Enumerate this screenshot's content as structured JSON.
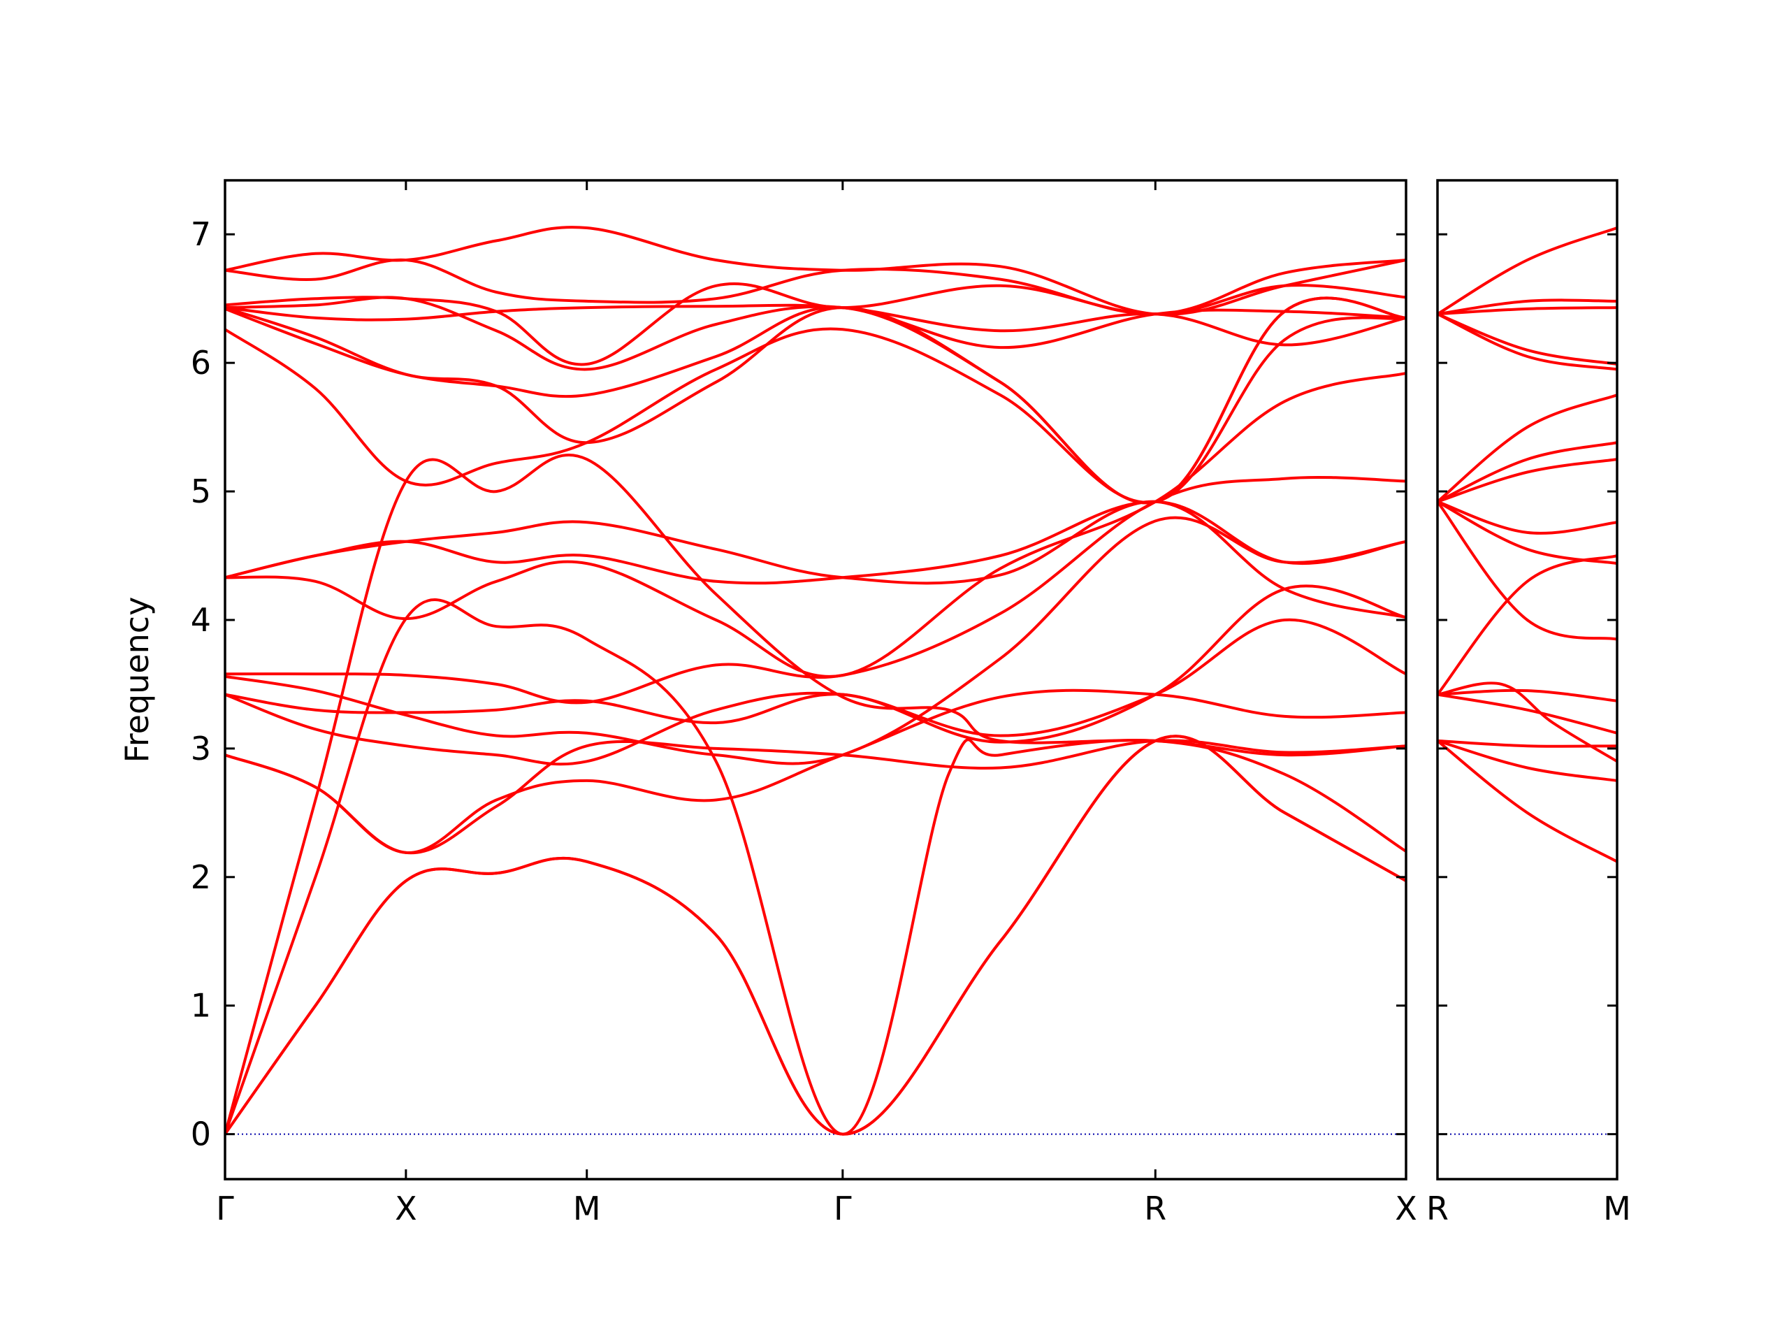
{
  "chart_data": {
    "type": "line",
    "title": "",
    "ylabel": "Frequency",
    "ylim": [
      -0.35,
      7.42
    ],
    "yticks": [
      0,
      1,
      2,
      3,
      4,
      5,
      6,
      7
    ],
    "grid": false,
    "legend": "none",
    "colors": {
      "bands": "#ff0000",
      "zero_line": "#0000aa",
      "axes": "#000000"
    },
    "panels": [
      {
        "path_labels": [
          "Γ",
          "X",
          "M",
          "Γ",
          "R",
          "X"
        ],
        "x_range": [
          0,
          4.57
        ],
        "label_positions": [
          0,
          0.7,
          1.4,
          2.39,
          3.6,
          4.57
        ],
        "series": [
          {
            "x": [
              0,
              0.35,
              0.7,
              1.05,
              1.4,
              1.9,
              2.39,
              3.0,
              3.6,
              4.1,
              4.57
            ],
            "values": [
              0,
              1.0,
              1.97,
              2.03,
              2.12,
              1.55,
              0,
              1.5,
              3.06,
              2.5,
              1.97
            ]
          },
          {
            "x": [
              0,
              0.35,
              0.7,
              1.05,
              1.4,
              1.9,
              2.39,
              3.0,
              3.6,
              4.1,
              4.57
            ],
            "values": [
              0,
              1.0,
              1.97,
              2.03,
              2.12,
              1.55,
              0,
              1.5,
              3.06,
              2.5,
              1.97
            ]
          },
          {
            "x": [
              0,
              0.35,
              0.7,
              1.05,
              1.4,
              1.9,
              2.39,
              2.8,
              3.0,
              3.6,
              4.1,
              4.57
            ],
            "values": [
              0,
              2.0,
              4.01,
              3.95,
              3.85,
              2.9,
              0,
              2.8,
              2.95,
              3.06,
              2.8,
              2.2
            ]
          },
          {
            "x": [
              0,
              0.35,
              0.7,
              1.05,
              1.4,
              1.9,
              2.39,
              2.8,
              3.0,
              3.6,
              4.1,
              4.57
            ],
            "values": [
              0,
              2.6,
              5.08,
              5.0,
              5.25,
              4.2,
              3.4,
              3.3,
              3.06,
              3.06,
              2.95,
              3.02
            ]
          },
          {
            "x": [
              0,
              0.35,
              0.7,
              1.05,
              1.4,
              1.9,
              2.39,
              3.0,
              3.6,
              4.1,
              4.57
            ],
            "values": [
              2.95,
              2.7,
              2.19,
              2.55,
              3.02,
              3.0,
              2.95,
              2.85,
              3.06,
              2.97,
              3.02
            ]
          },
          {
            "x": [
              0,
              0.35,
              0.7,
              1.05,
              1.4,
              1.9,
              2.39,
              3.0,
              3.6,
              4.1,
              4.57
            ],
            "values": [
              2.95,
              2.7,
              2.19,
              2.6,
              2.75,
              2.6,
              2.95,
              3.4,
              3.42,
              3.25,
              3.28
            ]
          },
          {
            "x": [
              0,
              0.35,
              0.7,
              1.05,
              1.4,
              1.9,
              2.39,
              3.0,
              3.6,
              4.1,
              4.57
            ],
            "values": [
              3.42,
              3.15,
              3.02,
              2.95,
              2.9,
              3.3,
              3.42,
              3.1,
              3.42,
              4.0,
              3.58
            ]
          },
          {
            "x": [
              0,
              0.35,
              0.7,
              1.05,
              1.4,
              1.9,
              2.39,
              3.0,
              3.6,
              4.1,
              4.57
            ],
            "values": [
              3.42,
              3.3,
              3.28,
              3.3,
              3.37,
              3.2,
              3.42,
              3.05,
              3.42,
              4.24,
              4.02
            ]
          },
          {
            "x": [
              0,
              0.35,
              0.7,
              1.05,
              1.4,
              1.9,
              2.39,
              3.0,
              3.6,
              4.1,
              4.57
            ],
            "values": [
              3.56,
              3.45,
              3.26,
              3.1,
              3.12,
              2.95,
              2.95,
              3.7,
              4.77,
              4.45,
              4.61
            ]
          },
          {
            "x": [
              0,
              0.35,
              0.7,
              1.05,
              1.4,
              1.9,
              2.39,
              3.0,
              3.6,
              4.1,
              4.57
            ],
            "values": [
              3.58,
              3.58,
              3.57,
              3.5,
              3.36,
              3.65,
              3.57,
              4.05,
              4.92,
              5.1,
              5.08
            ]
          },
          {
            "x": [
              0,
              0.35,
              0.7,
              1.05,
              1.4,
              1.9,
              2.39,
              3.0,
              3.6,
              4.1,
              4.57
            ],
            "values": [
              4.33,
              4.3,
              4.01,
              4.3,
              4.44,
              4.0,
              3.57,
              4.4,
              4.92,
              5.7,
              5.92
            ]
          },
          {
            "x": [
              0,
              0.35,
              0.7,
              1.05,
              1.4,
              1.9,
              2.39,
              3.0,
              3.6,
              4.1,
              4.57
            ],
            "values": [
              4.33,
              4.5,
              4.61,
              4.45,
              4.5,
              4.3,
              4.33,
              4.5,
              4.92,
              4.45,
              4.61
            ]
          },
          {
            "x": [
              0,
              0.35,
              0.7,
              1.05,
              1.4,
              1.9,
              2.39,
              3.0,
              3.6,
              4.1,
              4.57
            ],
            "values": [
              4.33,
              4.5,
              4.61,
              4.68,
              4.76,
              4.55,
              4.33,
              4.35,
              4.92,
              4.24,
              4.02
            ]
          },
          {
            "x": [
              0,
              0.35,
              0.7,
              1.05,
              1.4,
              1.9,
              2.39,
              3.0,
              3.6,
              4.1,
              4.57
            ],
            "values": [
              6.26,
              5.8,
              5.08,
              5.22,
              5.38,
              5.95,
              6.26,
              5.75,
              4.92,
              6.18,
              6.35
            ]
          },
          {
            "x": [
              0,
              0.35,
              0.7,
              1.05,
              1.4,
              1.9,
              2.39,
              3.0,
              3.6,
              4.1,
              4.57
            ],
            "values": [
              6.42,
              6.15,
              5.91,
              5.82,
              5.75,
              6.05,
              6.43,
              5.85,
              4.92,
              6.4,
              6.35
            ]
          },
          {
            "x": [
              0,
              0.35,
              0.7,
              1.05,
              1.4,
              1.9,
              2.39,
              3.0,
              3.6,
              4.1,
              4.57
            ],
            "values": [
              6.43,
              6.2,
              5.91,
              5.82,
              5.38,
              5.85,
              6.43,
              5.85,
              4.92,
              6.4,
              6.35
            ]
          },
          {
            "x": [
              0,
              0.35,
              0.7,
              1.05,
              1.4,
              1.9,
              2.39,
              3.0,
              3.6,
              4.1,
              4.57
            ],
            "values": [
              6.43,
              6.35,
              6.34,
              6.4,
              6.43,
              6.44,
              6.43,
              6.25,
              6.38,
              6.14,
              6.35
            ]
          },
          {
            "x": [
              0,
              0.35,
              0.7,
              1.05,
              1.4,
              1.9,
              2.39,
              3.0,
              3.6,
              4.1,
              4.57
            ],
            "values": [
              6.43,
              6.45,
              6.5,
              6.25,
              5.95,
              6.3,
              6.43,
              6.12,
              6.38,
              6.4,
              6.35
            ]
          },
          {
            "x": [
              0,
              0.35,
              0.7,
              1.05,
              1.4,
              1.9,
              2.39,
              3.0,
              3.6,
              4.1,
              4.57
            ],
            "values": [
              6.45,
              6.5,
              6.5,
              6.4,
              5.99,
              6.6,
              6.43,
              6.6,
              6.38,
              6.6,
              6.51
            ]
          },
          {
            "x": [
              0,
              0.35,
              0.7,
              1.05,
              1.4,
              1.9,
              2.39,
              3.0,
              3.6,
              4.1,
              4.57
            ],
            "values": [
              6.72,
              6.65,
              6.8,
              6.55,
              6.48,
              6.5,
              6.72,
              6.65,
              6.38,
              6.7,
              6.8
            ]
          },
          {
            "x": [
              0,
              0.35,
              0.7,
              1.05,
              1.4,
              1.9,
              2.39,
              3.0,
              3.6,
              4.1,
              4.57
            ],
            "values": [
              6.72,
              6.85,
              6.8,
              6.95,
              7.05,
              6.8,
              6.72,
              6.75,
              6.38,
              6.6,
              6.8
            ]
          }
        ]
      },
      {
        "path_labels": [
          "R",
          "M"
        ],
        "x_range": [
          0,
          0.7
        ],
        "label_positions": [
          0,
          0.7
        ],
        "series": [
          {
            "x": [
              0,
              0.35,
              0.7
            ],
            "values": [
              3.06,
              2.5,
              2.12
            ]
          },
          {
            "x": [
              0,
              0.35,
              0.7
            ],
            "values": [
              3.06,
              2.85,
              2.75
            ]
          },
          {
            "x": [
              0,
              0.35,
              0.7
            ],
            "values": [
              3.06,
              3.02,
              3.02
            ]
          },
          {
            "x": [
              0,
              0.35,
              0.7
            ],
            "values": [
              3.42,
              3.3,
              3.12
            ]
          },
          {
            "x": [
              0,
              0.35,
              0.7
            ],
            "values": [
              3.42,
              3.45,
              3.37
            ]
          },
          {
            "x": [
              0,
              0.25,
              0.45,
              0.7
            ],
            "values": [
              3.42,
              3.5,
              3.2,
              2.9
            ]
          },
          {
            "x": [
              0,
              0.35,
              0.7
            ],
            "values": [
              3.42,
              4.3,
              4.5
            ]
          },
          {
            "x": [
              0,
              0.35,
              0.7
            ],
            "values": [
              4.92,
              4.0,
              3.85
            ]
          },
          {
            "x": [
              0,
              0.35,
              0.7
            ],
            "values": [
              4.92,
              4.55,
              4.44
            ]
          },
          {
            "x": [
              0,
              0.35,
              0.7
            ],
            "values": [
              4.92,
              4.68,
              4.76
            ]
          },
          {
            "x": [
              0,
              0.35,
              0.7
            ],
            "values": [
              4.92,
              5.15,
              5.25
            ]
          },
          {
            "x": [
              0,
              0.35,
              0.7
            ],
            "values": [
              4.92,
              5.25,
              5.38
            ]
          },
          {
            "x": [
              0,
              0.35,
              0.7
            ],
            "values": [
              4.92,
              5.5,
              5.75
            ]
          },
          {
            "x": [
              0,
              0.35,
              0.7
            ],
            "values": [
              6.38,
              6.05,
              5.95
            ]
          },
          {
            "x": [
              0,
              0.35,
              0.7
            ],
            "values": [
              6.38,
              6.1,
              5.99
            ]
          },
          {
            "x": [
              0,
              0.35,
              0.7
            ],
            "values": [
              6.38,
              6.42,
              6.43
            ]
          },
          {
            "x": [
              0,
              0.35,
              0.7
            ],
            "values": [
              6.38,
              6.48,
              6.48
            ]
          },
          {
            "x": [
              0,
              0.35,
              0.7
            ],
            "values": [
              6.38,
              6.8,
              7.05
            ]
          }
        ]
      }
    ]
  }
}
